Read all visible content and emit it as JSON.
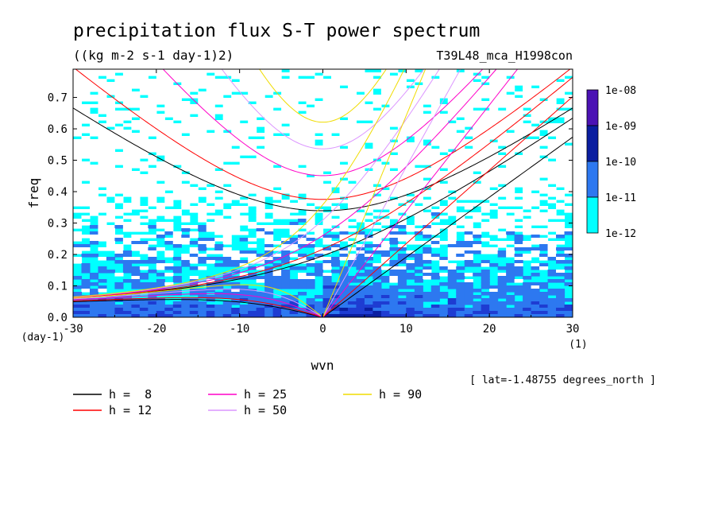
{
  "chart_data": {
    "type": "heatmap",
    "title": "precipitation flux S-T power spectrum",
    "units": "((kg m-2 s-1 day-1)2)",
    "run_name": "T39L48_mca_H1998con",
    "xlabel": "wvn",
    "ylabel": "freq",
    "x_unit_label": "(1)",
    "y_unit_label": "(day-1)",
    "xlim": [
      -30,
      30
    ],
    "ylim": [
      0,
      0.79
    ],
    "x_ticks": [
      -30,
      -20,
      -10,
      0,
      10,
      20,
      30
    ],
    "x_tick_labels": [
      "-30",
      "-20",
      "-10",
      "0",
      "10",
      "20",
      "30"
    ],
    "y_ticks": [
      0.0,
      0.1,
      0.2,
      0.3,
      0.4,
      0.5,
      0.6,
      0.7
    ],
    "y_tick_labels": [
      "0.0",
      "0.1",
      "0.2",
      "0.3",
      "0.4",
      "0.5",
      "0.6",
      "0.7"
    ],
    "colorbar": {
      "levels": [
        "1e-08",
        "1e-09",
        "1e-10",
        "1e-11",
        "1e-12"
      ],
      "colors": [
        "#4b12b4",
        "#0a1ea0",
        "#1e3cd2",
        "#2d78f0",
        "#00ffff"
      ]
    },
    "lowest_band_color": "#ffffff",
    "dispersion_curves": [
      {
        "label": "h =  8",
        "h": 8,
        "color": "#000000"
      },
      {
        "label": "h = 12",
        "h": 12,
        "color": "#ff0000"
      },
      {
        "label": "h = 25",
        "h": 25,
        "color": "#ff00c8"
      },
      {
        "label": "h = 50",
        "h": 50,
        "color": "#dc96ff"
      },
      {
        "label": "h = 90",
        "h": 90,
        "color": "#f0dc00"
      }
    ],
    "latitude_note": "[ lat=-1.48755 degrees_north ]"
  }
}
